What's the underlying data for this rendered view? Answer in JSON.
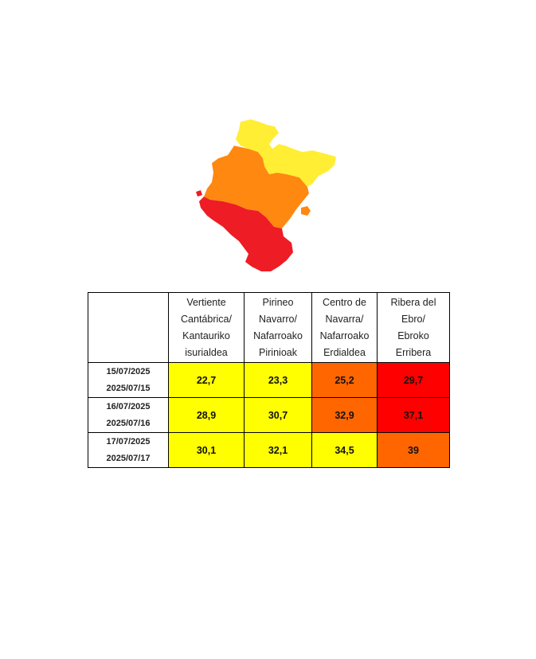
{
  "map": {
    "colors": {
      "yellow": "#ffff00",
      "orange": "#ff6600",
      "red": "#ff0000",
      "map_yellow": "#ffee33",
      "map_orange": "#ff8811",
      "map_red": "#ee1c24"
    }
  },
  "table": {
    "headers": [
      "",
      [
        "Vertiente",
        "Cantábrica/",
        "Kantauriko",
        "isurialdea"
      ],
      [
        "Pirineo",
        "Navarro/",
        "Nafarroako",
        "Pirinioak"
      ],
      [
        "Centro de",
        "Navarra/",
        "Nafarroako",
        "Erdialdea"
      ],
      [
        "Ribera del",
        "Ebro/",
        "Ebroko",
        "Erribera"
      ]
    ],
    "rows": [
      {
        "date_es": "15/07/2025",
        "date_eu": "2025/07/15",
        "values": [
          "22,7",
          "23,3",
          "25,2",
          "29,7"
        ],
        "levels": [
          "yellow",
          "yellow",
          "orange",
          "red"
        ]
      },
      {
        "date_es": "16/07/2025",
        "date_eu": "2025/07/16",
        "values": [
          "28,9",
          "30,7",
          "32,9",
          "37,1"
        ],
        "levels": [
          "yellow",
          "yellow",
          "orange",
          "red"
        ]
      },
      {
        "date_es": "17/07/2025",
        "date_eu": "2025/07/17",
        "values": [
          "30,1",
          "32,1",
          "34,5",
          "39"
        ],
        "levels": [
          "yellow",
          "yellow",
          "yellow",
          "orange"
        ]
      }
    ]
  }
}
